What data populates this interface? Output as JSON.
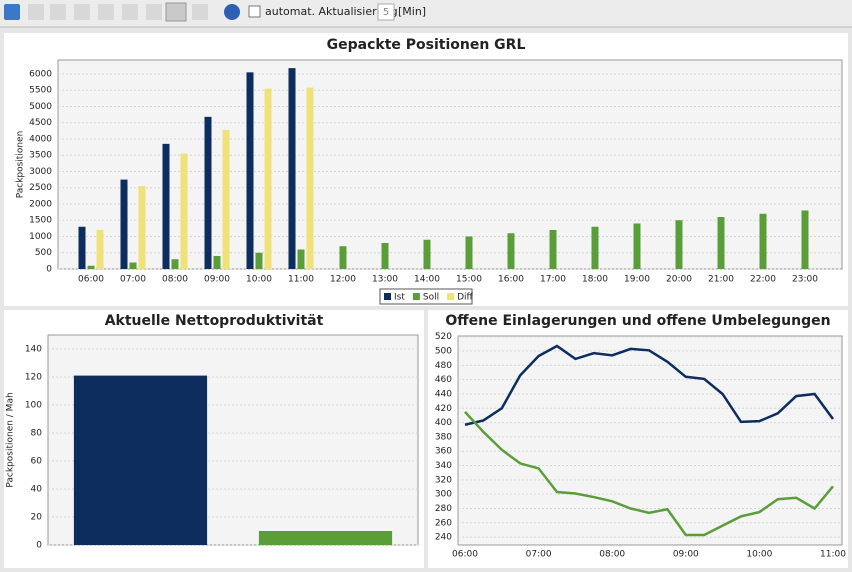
{
  "toolbar": {
    "auto_update": "automat. Aktualisierung",
    "interval": "5",
    "unit": "[Min]"
  },
  "chart_data": [
    {
      "type": "bar",
      "title": "Gepackte Positionen GRL",
      "y_label": "Packpositionen",
      "categories": [
        "06:00",
        "07:00",
        "08:00",
        "09:00",
        "10:00",
        "11:00",
        "12:00",
        "13:00",
        "14:00",
        "15:00",
        "16:00",
        "17:00",
        "18:00",
        "19:00",
        "20:00",
        "21:00",
        "22:00",
        "23:00"
      ],
      "series": [
        {
          "name": "Ist",
          "color": "#0c2d5e",
          "values": [
            1300,
            2750,
            3850,
            4680,
            6050,
            6180,
            null,
            null,
            null,
            null,
            null,
            null,
            null,
            null,
            null,
            null,
            null,
            null
          ]
        },
        {
          "name": "Soll",
          "color": "#5a9e3a",
          "values": [
            100,
            200,
            300,
            400,
            500,
            600,
            700,
            800,
            900,
            1000,
            1100,
            1200,
            1300,
            1400,
            1500,
            1600,
            1700,
            1800
          ]
        },
        {
          "name": "Diff",
          "color": "#f0e27a",
          "values": [
            1200,
            2550,
            3550,
            4280,
            5550,
            5580,
            null,
            null,
            null,
            null,
            null,
            null,
            null,
            null,
            null,
            null,
            null,
            null
          ]
        }
      ],
      "ylim": [
        0,
        6430
      ],
      "yticks": [
        0,
        500,
        1000,
        1500,
        2000,
        2500,
        3000,
        3500,
        4000,
        4500,
        5000,
        5500,
        6000
      ],
      "grid": true,
      "legend": "bottom"
    },
    {
      "type": "bar",
      "title": "Aktuelle Nettoproduktivität",
      "y_label": "Packpositionen / Mah",
      "categories": [
        null,
        null
      ],
      "values": [
        121,
        10
      ],
      "colors": [
        "#0c2d5e",
        "#5a9e3a"
      ],
      "ylim": [
        0,
        150
      ],
      "yticks": [
        0,
        20,
        40,
        60,
        80,
        100,
        120,
        140
      ],
      "grid": true
    },
    {
      "type": "line",
      "title": "Offene Einlagerungen und offene Umbelegungen",
      "categories": [
        "06:00",
        null,
        null,
        null,
        "07:00",
        null,
        null,
        null,
        "08:00",
        null,
        null,
        null,
        "09:00",
        null,
        null,
        null,
        "10:00",
        null,
        null,
        null,
        "11:00"
      ],
      "series": [
        {
          "color": "#0c2d5e",
          "values": [
            397,
            403,
            420,
            466,
            493,
            507,
            489,
            497,
            494,
            503,
            501,
            485,
            464,
            461,
            440,
            401,
            402,
            413,
            437,
            440,
            405
          ]
        },
        {
          "color": "#5a9e3a",
          "values": [
            415,
            387,
            362,
            343,
            336,
            303,
            301,
            296,
            290,
            280,
            274,
            279,
            243,
            243,
            256,
            269,
            275,
            293,
            295,
            280,
            311
          ]
        }
      ],
      "ylim": [
        229,
        521
      ],
      "yticks": [
        240,
        260,
        280,
        300,
        320,
        340,
        360,
        380,
        400,
        420,
        440,
        460,
        480,
        500,
        520
      ],
      "grid": true
    }
  ]
}
